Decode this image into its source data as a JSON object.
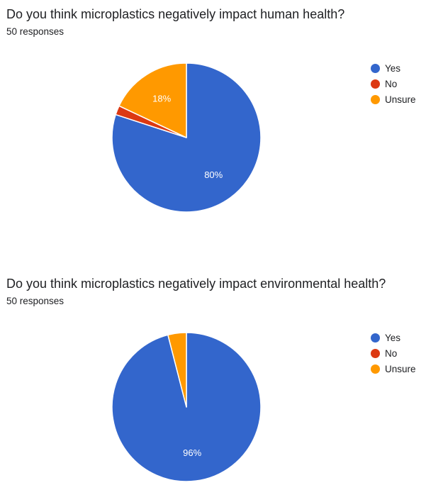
{
  "chart_data": [
    {
      "type": "pie",
      "title": "Do you think microplastics negatively impact human health?",
      "subtitle": "50 responses",
      "categories": [
        "Yes",
        "No",
        "Unsure"
      ],
      "values": [
        40,
        1,
        9
      ],
      "percent_labels": [
        "80%",
        "",
        "18%"
      ],
      "colors": [
        "#3366cc",
        "#dc3912",
        "#ff9900"
      ],
      "legend_position": "right"
    },
    {
      "type": "pie",
      "title": "Do you think microplastics negatively impact environmental health?",
      "subtitle": "50 responses",
      "categories": [
        "Yes",
        "No",
        "Unsure"
      ],
      "values": [
        48,
        0,
        2
      ],
      "percent_labels": [
        "96%",
        "",
        ""
      ],
      "colors": [
        "#3366cc",
        "#dc3912",
        "#ff9900"
      ],
      "legend_position": "right"
    }
  ]
}
